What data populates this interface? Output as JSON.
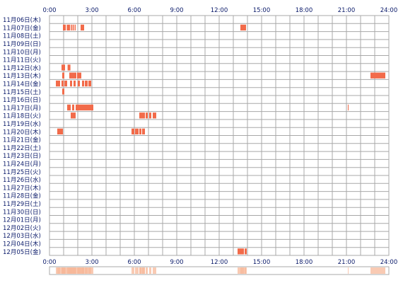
{
  "chart_data": {
    "type": "heatmap",
    "x_unit": "hours",
    "xlim": [
      0,
      24
    ],
    "x_ticks": [
      "0:00",
      "3:00",
      "6:00",
      "9:00",
      "12:00",
      "15:00",
      "18:00",
      "21:00",
      "24:00"
    ],
    "rows": [
      {
        "label": "11月06日(木)",
        "intervals": []
      },
      {
        "label": "11月07日(金)",
        "intervals": [
          [
            0.95,
            1.15
          ],
          [
            1.22,
            1.45
          ],
          [
            1.5,
            1.58
          ],
          [
            1.63,
            1.72
          ],
          [
            1.78,
            1.85
          ],
          [
            2.2,
            2.45
          ],
          [
            13.5,
            13.9
          ]
        ]
      },
      {
        "label": "11月08日(土)",
        "intervals": []
      },
      {
        "label": "11月09日(日)",
        "intervals": []
      },
      {
        "label": "11月10日(月)",
        "intervals": []
      },
      {
        "label": "11月11日(火)",
        "intervals": []
      },
      {
        "label": "11月12日(水)",
        "intervals": [
          [
            0.85,
            1.1
          ],
          [
            1.28,
            1.48
          ]
        ]
      },
      {
        "label": "11月13日(木)",
        "intervals": [
          [
            0.9,
            1.05
          ],
          [
            1.4,
            1.9
          ],
          [
            1.95,
            2.25
          ],
          [
            22.7,
            23.75
          ]
        ]
      },
      {
        "label": "11月14日(金)",
        "intervals": [
          [
            0.45,
            0.75
          ],
          [
            0.85,
            1.0
          ],
          [
            1.05,
            1.25
          ],
          [
            1.45,
            1.6
          ],
          [
            1.7,
            1.85
          ],
          [
            2.0,
            2.15
          ],
          [
            2.3,
            2.45
          ],
          [
            2.5,
            2.7
          ],
          [
            2.75,
            2.95
          ]
        ]
      },
      {
        "label": "11月15日(土)",
        "intervals": [
          [
            0.9,
            1.05
          ]
        ]
      },
      {
        "label": "11月16日(日)",
        "intervals": []
      },
      {
        "label": "11月17日(月)",
        "intervals": [
          [
            1.25,
            1.5
          ],
          [
            1.6,
            1.75
          ],
          [
            1.85,
            3.1
          ],
          [
            21.1,
            21.15
          ]
        ]
      },
      {
        "label": "11月18日(火)",
        "intervals": [
          [
            1.5,
            1.85
          ],
          [
            6.35,
            6.75
          ],
          [
            6.8,
            6.95
          ],
          [
            7.05,
            7.2
          ],
          [
            7.3,
            7.55
          ]
        ]
      },
      {
        "label": "11月19日(水)",
        "intervals": []
      },
      {
        "label": "11月20日(木)",
        "intervals": [
          [
            0.55,
            0.95
          ],
          [
            5.8,
            6.0
          ],
          [
            6.05,
            6.3
          ],
          [
            6.35,
            6.5
          ],
          [
            6.55,
            6.75
          ]
        ]
      },
      {
        "label": "11月21日(金)",
        "intervals": []
      },
      {
        "label": "11月22日(土)",
        "intervals": []
      },
      {
        "label": "11月23日(日)",
        "intervals": []
      },
      {
        "label": "11月24日(月)",
        "intervals": []
      },
      {
        "label": "11月25日(火)",
        "intervals": []
      },
      {
        "label": "11月26日(水)",
        "intervals": []
      },
      {
        "label": "11月27日(木)",
        "intervals": []
      },
      {
        "label": "11月28日(金)",
        "intervals": []
      },
      {
        "label": "11月29日(土)",
        "intervals": []
      },
      {
        "label": "11月30日(日)",
        "intervals": []
      },
      {
        "label": "12月01日(月)",
        "intervals": []
      },
      {
        "label": "12月02日(火)",
        "intervals": []
      },
      {
        "label": "12月03日(水)",
        "intervals": []
      },
      {
        "label": "12月04日(木)",
        "intervals": []
      },
      {
        "label": "12月05日(金)",
        "intervals": [
          [
            13.3,
            13.75
          ],
          [
            13.8,
            13.95
          ]
        ]
      }
    ],
    "colors": {
      "bar": "#f26b4a",
      "grid": "#a8a8a8",
      "label": "#0a1a6a",
      "summary": "#f7b89a"
    }
  }
}
